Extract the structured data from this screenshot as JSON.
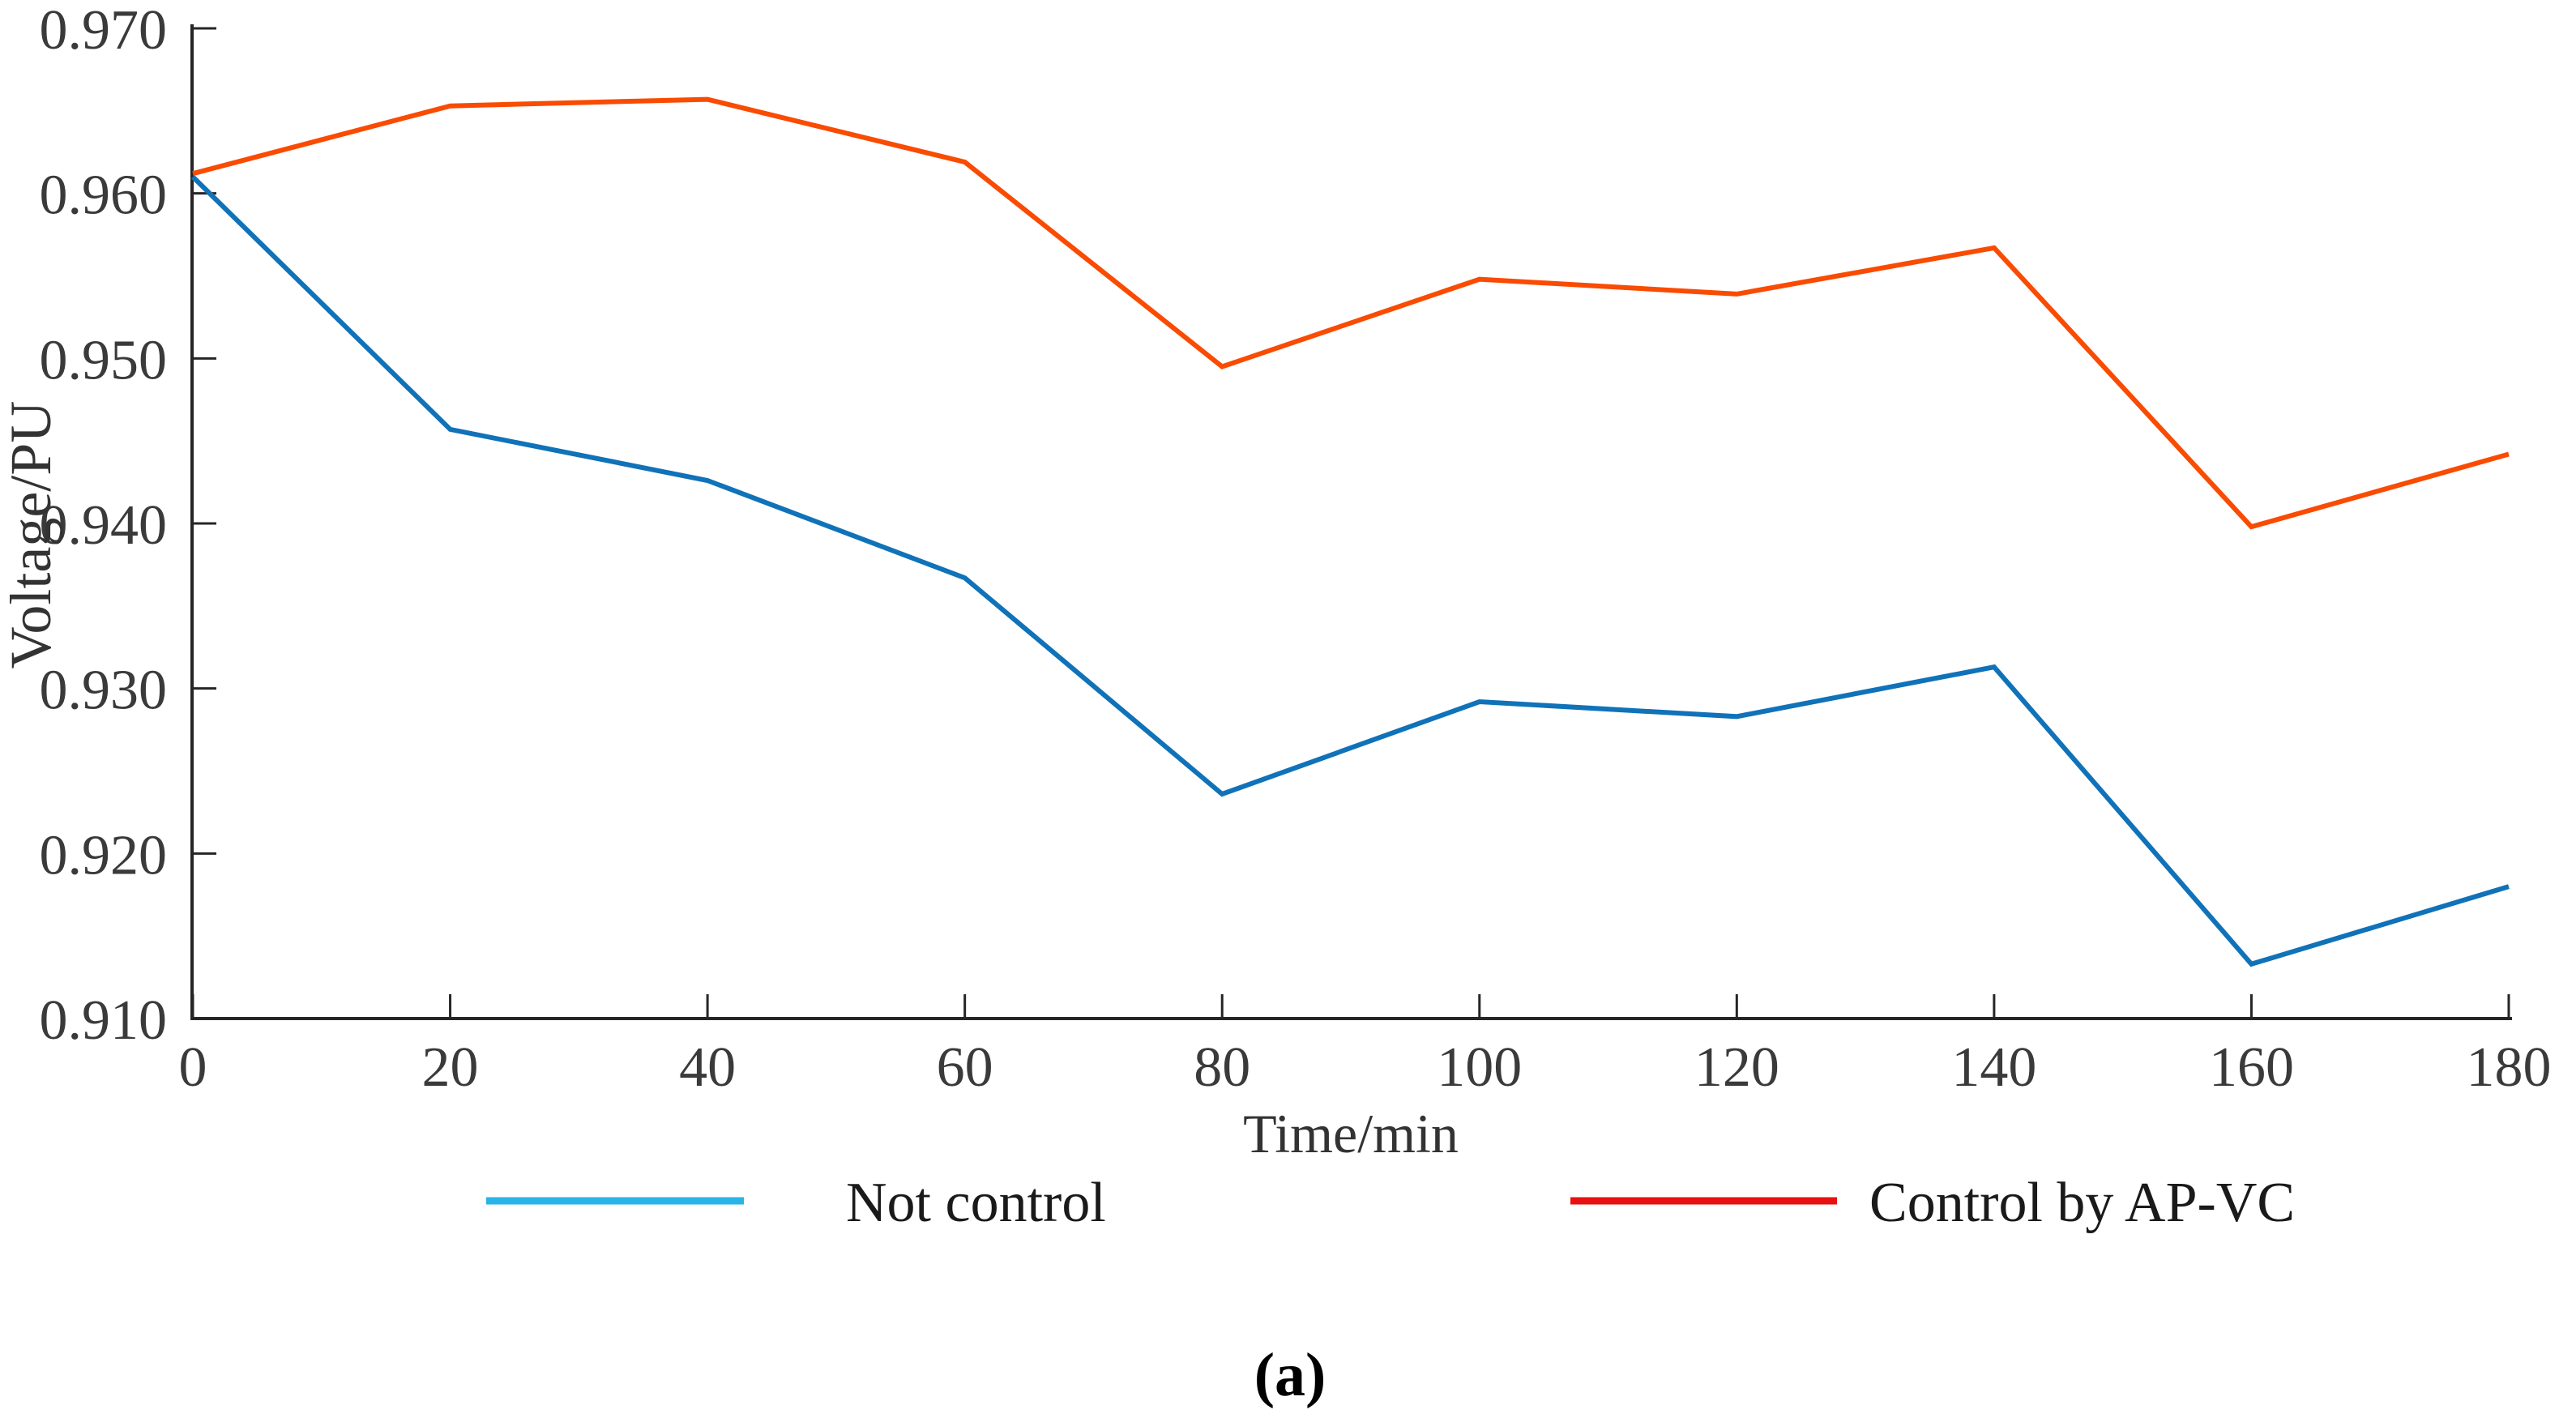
{
  "figure": {
    "caption": "(a)"
  },
  "chart_data": {
    "type": "line",
    "title": "",
    "xlabel": "Time/min",
    "ylabel": "Voltage/PU",
    "xlim": [
      0,
      180
    ],
    "ylim": [
      0.91,
      0.97
    ],
    "grid": false,
    "legend_position": "below",
    "x_ticks": [
      0,
      20,
      40,
      60,
      80,
      100,
      120,
      140,
      160,
      180
    ],
    "x_tick_labels": [
      "0",
      "20",
      "40",
      "60",
      "80",
      "100",
      "120",
      "140",
      "160",
      "180"
    ],
    "y_ticks": [
      0.91,
      0.92,
      0.93,
      0.94,
      0.95,
      0.96,
      0.97
    ],
    "y_tick_labels": [
      "0.910",
      "0.920",
      "0.930",
      "0.940",
      "0.950",
      "0.960",
      "0.970"
    ],
    "axis_color": "#262626",
    "tick_label_color": "#3a3a3a",
    "x": [
      0,
      20,
      40,
      60,
      80,
      100,
      120,
      140,
      160,
      180
    ],
    "series": [
      {
        "name": "Not control",
        "color": "#1072b8",
        "legend_key_color": "#29b4e8",
        "values": [
          0.961,
          0.9457,
          0.9426,
          0.9367,
          0.9236,
          0.9292,
          0.9283,
          0.9313,
          0.9133,
          0.918
        ]
      },
      {
        "name": "Control by AP-VC",
        "color": "#f94b02",
        "legend_key_color": "#e81112",
        "values": [
          0.9612,
          0.9653,
          0.9657,
          0.9619,
          0.9495,
          0.9548,
          0.9539,
          0.9567,
          0.9398,
          0.9442
        ]
      }
    ]
  }
}
